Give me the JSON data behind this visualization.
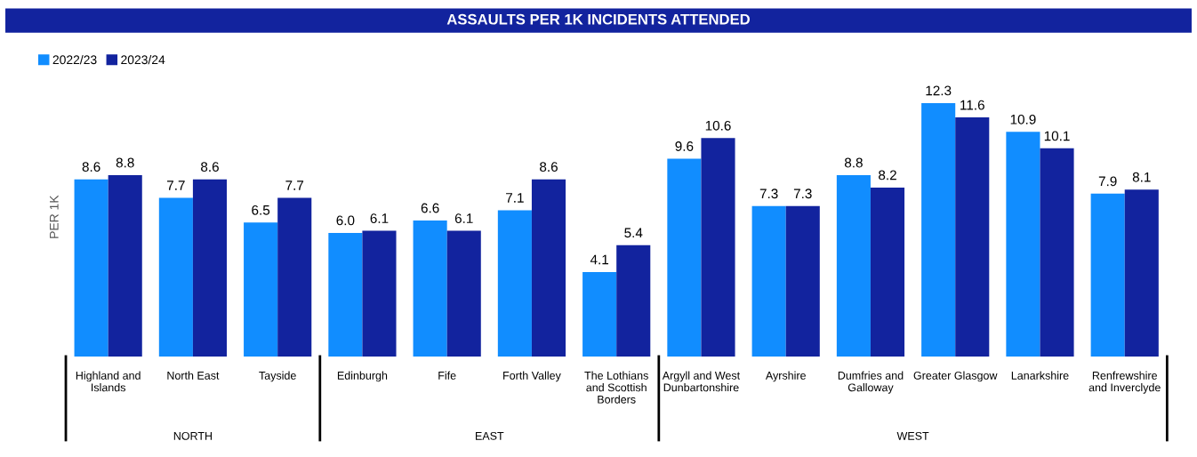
{
  "chart_data": [
    {
      "type": "bar",
      "ylabel": "PER 1K",
      "xlabel": "NORTH",
      "categories": [
        "Highland and Islands",
        "North East",
        "Tayside"
      ],
      "series": [
        {
          "name": "2022/23",
          "color": "#118dff",
          "values": [
            8.6,
            7.7,
            6.5
          ],
          "value_labels": [
            "8.6",
            "7.7",
            "6.5"
          ]
        },
        {
          "name": "2023/24",
          "color": "#12239e",
          "values": [
            8.8,
            8.6,
            7.7
          ],
          "value_labels": [
            "8.8",
            "8.6",
            "7.7"
          ]
        }
      ],
      "legend": "top left",
      "tick_labels": "x"
    },
    {
      "type": "bar",
      "title": "ASSAULTS PER 1K INCIDENTS ATTENDED",
      "xlabel": "EAST",
      "categories": [
        "Edinburgh",
        "Fife",
        "Forth Valley",
        "The Lothians and Scottish Borders"
      ],
      "series": [
        {
          "color": "#118dff",
          "values": [
            6.0,
            6.6,
            7.1,
            4.1
          ],
          "value_labels": [
            "6.0",
            "6.6",
            "7.1",
            "4.1"
          ]
        },
        {
          "color": "#12239e",
          "values": [
            6.1,
            6.1,
            8.6,
            5.4
          ],
          "value_labels": [
            "6.1",
            "6.1",
            "8.6",
            "5.4"
          ]
        }
      ],
      "tick_labels": "x"
    },
    {
      "type": "bar",
      "xlabel": "WEST",
      "categories": [
        "Argyll and West Dunbartonshire",
        "Ayrshire",
        "Dumfries and Galloway",
        "Greater Glasgow",
        "Lanarkshire",
        "Renfrewshire and Inverclyde"
      ],
      "series": [
        {
          "color": "#118dff",
          "values": [
            9.6,
            7.3,
            8.8,
            12.3,
            10.9,
            7.9
          ],
          "value_labels": [
            "9.6",
            "7.3",
            "8.8",
            "12.3",
            "10.9",
            "7.9"
          ]
        },
        {
          "color": "#12239e",
          "values": [
            10.6,
            7.3,
            8.2,
            11.6,
            10.1,
            8.1
          ],
          "value_labels": [
            "10.6",
            "7.3",
            "8.2",
            "11.6",
            "10.1",
            "8.1"
          ]
        }
      ],
      "tick_labels": "x"
    }
  ]
}
